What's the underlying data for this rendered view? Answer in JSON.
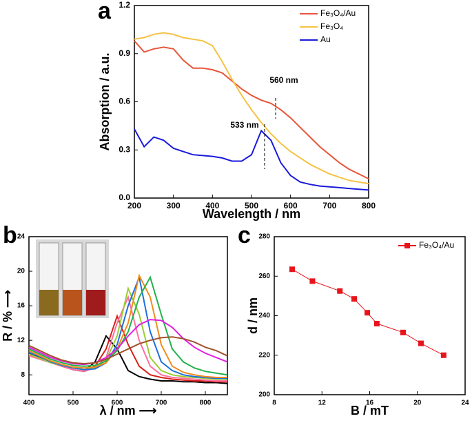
{
  "chart_data": [
    {
      "type": "line",
      "label": "a",
      "xlabel": "Wavelength / nm",
      "ylabel": "Absorption / a.u.",
      "xlim": [
        200,
        800
      ],
      "xticks": [
        200,
        300,
        400,
        500,
        600,
        700,
        800
      ],
      "ylim": [
        0,
        1.2
      ],
      "yticks": [
        {
          "value": 0,
          "label": "0.0"
        },
        {
          "value": 0.3,
          "label": "0.3"
        },
        {
          "value": 0.6,
          "label": "0.6"
        },
        {
          "value": 0.9,
          "label": "0.9"
        },
        {
          "value": 1.2,
          "label": "1.2"
        }
      ],
      "legend": "upper right",
      "annotations": [
        "560 nm",
        "533 nm"
      ],
      "x": [
        200,
        225,
        250,
        275,
        300,
        325,
        350,
        375,
        400,
        425,
        450,
        475,
        500,
        525,
        550,
        575,
        600,
        625,
        650,
        675,
        700,
        725,
        750,
        775,
        800
      ],
      "series": [
        {
          "name": "Fe₃O₄/Au",
          "color": "#e8553a",
          "values": [
            0.98,
            0.91,
            0.93,
            0.94,
            0.93,
            0.86,
            0.81,
            0.81,
            0.8,
            0.78,
            0.73,
            0.68,
            0.64,
            0.61,
            0.59,
            0.55,
            0.5,
            0.44,
            0.38,
            0.32,
            0.27,
            0.22,
            0.18,
            0.15,
            0.12
          ]
        },
        {
          "name": "Fe₃O₄",
          "color": "#f5c242",
          "values": [
            0.99,
            1.0,
            1.02,
            1.03,
            1.02,
            1.0,
            0.99,
            0.98,
            0.95,
            0.85,
            0.74,
            0.64,
            0.55,
            0.47,
            0.4,
            0.34,
            0.29,
            0.25,
            0.21,
            0.18,
            0.15,
            0.13,
            0.11,
            0.1,
            0.09
          ]
        },
        {
          "name": "Au",
          "color": "#1a1adb",
          "values": [
            0.43,
            0.32,
            0.38,
            0.36,
            0.31,
            0.29,
            0.27,
            0.265,
            0.26,
            0.25,
            0.23,
            0.23,
            0.27,
            0.42,
            0.36,
            0.22,
            0.14,
            0.1,
            0.085,
            0.075,
            0.07,
            0.065,
            0.06,
            0.055,
            0.05
          ]
        }
      ]
    },
    {
      "type": "line",
      "label": "b",
      "xlabel": "λ / nm ⟶",
      "ylabel": "R / % ⟶",
      "xlim": [
        400,
        850
      ],
      "xticks": [
        400,
        500,
        600,
        700,
        800
      ],
      "ylim": [
        5.7,
        24
      ],
      "yticks": [
        8,
        12,
        16,
        20,
        24
      ],
      "x": [
        400,
        425,
        450,
        475,
        500,
        525,
        550,
        575,
        600,
        625,
        650,
        675,
        700,
        725,
        750,
        775,
        800,
        825,
        850
      ],
      "series": [
        {
          "color": "#000000",
          "values": [
            10.5,
            10,
            9.5,
            9,
            8.6,
            8.4,
            9.5,
            12.5,
            11,
            8.5,
            7.8,
            7.5,
            7.3,
            7.3,
            7.2,
            7.2,
            7.1,
            7.1,
            7.0
          ]
        },
        {
          "color": "#d9201b",
          "values": [
            10.3,
            9.9,
            9.4,
            9,
            8.6,
            8.4,
            9,
            11,
            14.8,
            11.5,
            9,
            8,
            7.7,
            7.5,
            7.4,
            7.3,
            7.3,
            7.2,
            7.2
          ]
        },
        {
          "color": "#ff6fa0",
          "values": [
            10.2,
            9.8,
            9.4,
            9,
            8.6,
            8.4,
            8.8,
            10,
            14,
            17,
            12,
            9,
            8,
            7.7,
            7.6,
            7.5,
            7.4,
            7.3,
            7.3
          ]
        },
        {
          "color": "#9acd32",
          "values": [
            10.4,
            9.9,
            9.4,
            9.1,
            8.8,
            8.6,
            8.8,
            9.7,
            12.5,
            18,
            15,
            10,
            8.5,
            8,
            7.8,
            7.7,
            7.6,
            7.5,
            7.5
          ]
        },
        {
          "color": "#1f6fe0",
          "values": [
            10.6,
            10.1,
            9.5,
            9.1,
            8.8,
            8.6,
            8.7,
            9.4,
            11.5,
            16,
            19.3,
            13,
            9.5,
            8.5,
            8,
            7.8,
            7.7,
            7.6,
            7.6
          ]
        },
        {
          "color": "#f08c1e",
          "values": [
            10.8,
            10.2,
            9.6,
            9.2,
            8.9,
            8.8,
            8.9,
            9.4,
            11,
            14,
            19.5,
            17,
            11.5,
            9,
            8.3,
            8,
            7.8,
            7.7,
            7.7
          ]
        },
        {
          "color": "#22b14c",
          "values": [
            11,
            10.4,
            9.8,
            9.4,
            9.1,
            9,
            9.1,
            9.6,
            10.8,
            13,
            17,
            19.3,
            15,
            11,
            9.5,
            8.8,
            8.4,
            8.2,
            8
          ]
        },
        {
          "color": "#e020e0",
          "values": [
            11.2,
            10.6,
            10,
            9.6,
            9.3,
            9.2,
            9.4,
            10,
            11,
            12.5,
            13.8,
            14.4,
            14.3,
            13.5,
            12.2,
            11.2,
            10.5,
            10,
            9.5
          ]
        },
        {
          "color": "#a0522d",
          "values": [
            11.4,
            10.8,
            10.2,
            9.7,
            9.4,
            9.3,
            9.4,
            9.8,
            10.4,
            11,
            11.6,
            12,
            12.3,
            12.4,
            12.2,
            11.8,
            11.2,
            10.8,
            10.2
          ]
        }
      ]
    },
    {
      "type": "line",
      "label": "c",
      "xlabel": "B / mT",
      "ylabel": "d / nm",
      "marker": "square",
      "xlim": [
        8,
        24
      ],
      "xticks": [
        8,
        12,
        16,
        20,
        24
      ],
      "ylim": [
        200,
        280
      ],
      "yticks": [
        200,
        220,
        240,
        260,
        280
      ],
      "legend": "upper right",
      "x": [
        9.5,
        11.2,
        13.5,
        14.7,
        15.8,
        16.6,
        18.8,
        20.3,
        22.2
      ],
      "series": [
        {
          "name": "Fe₃O₄/Au",
          "color": "#e8141b",
          "values": [
            263.5,
            257.5,
            252.5,
            248.5,
            241.5,
            236,
            231.5,
            226,
            220
          ]
        }
      ]
    }
  ]
}
